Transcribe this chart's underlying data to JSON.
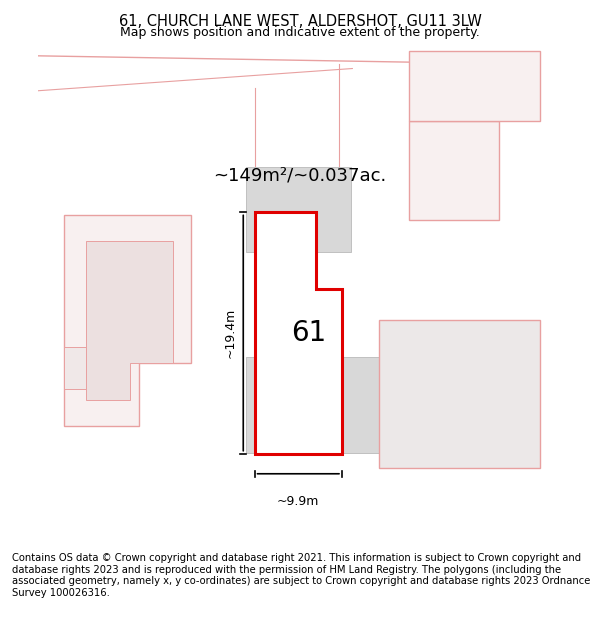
{
  "title": "61, CHURCH LANE WEST, ALDERSHOT, GU11 3LW",
  "subtitle": "Map shows position and indicative extent of the property.",
  "area_label": "~149m²/~0.037ac.",
  "number_label": "61",
  "height_label": "~19.4m",
  "width_label": "~9.9m",
  "footer": "Contains OS data © Crown copyright and database right 2021. This information is subject to Crown copyright and database rights 2023 and is reproduced with the permission of HM Land Registry. The polygons (including the associated geometry, namely x, y co-ordinates) are subject to Crown copyright and database rights 2023 Ordnance Survey 100026316.",
  "bg_color": "#ffffff",
  "title_fontsize": 10.5,
  "subtitle_fontsize": 9,
  "footer_fontsize": 7.2,
  "pink": "#e8a0a0",
  "light_pink": "#f5c8c8",
  "grey_fill": "#d8d8d8",
  "grey_outline": "#c0c0c0",
  "red": "#e00000",
  "black": "#000000",
  "white": "#ffffff"
}
